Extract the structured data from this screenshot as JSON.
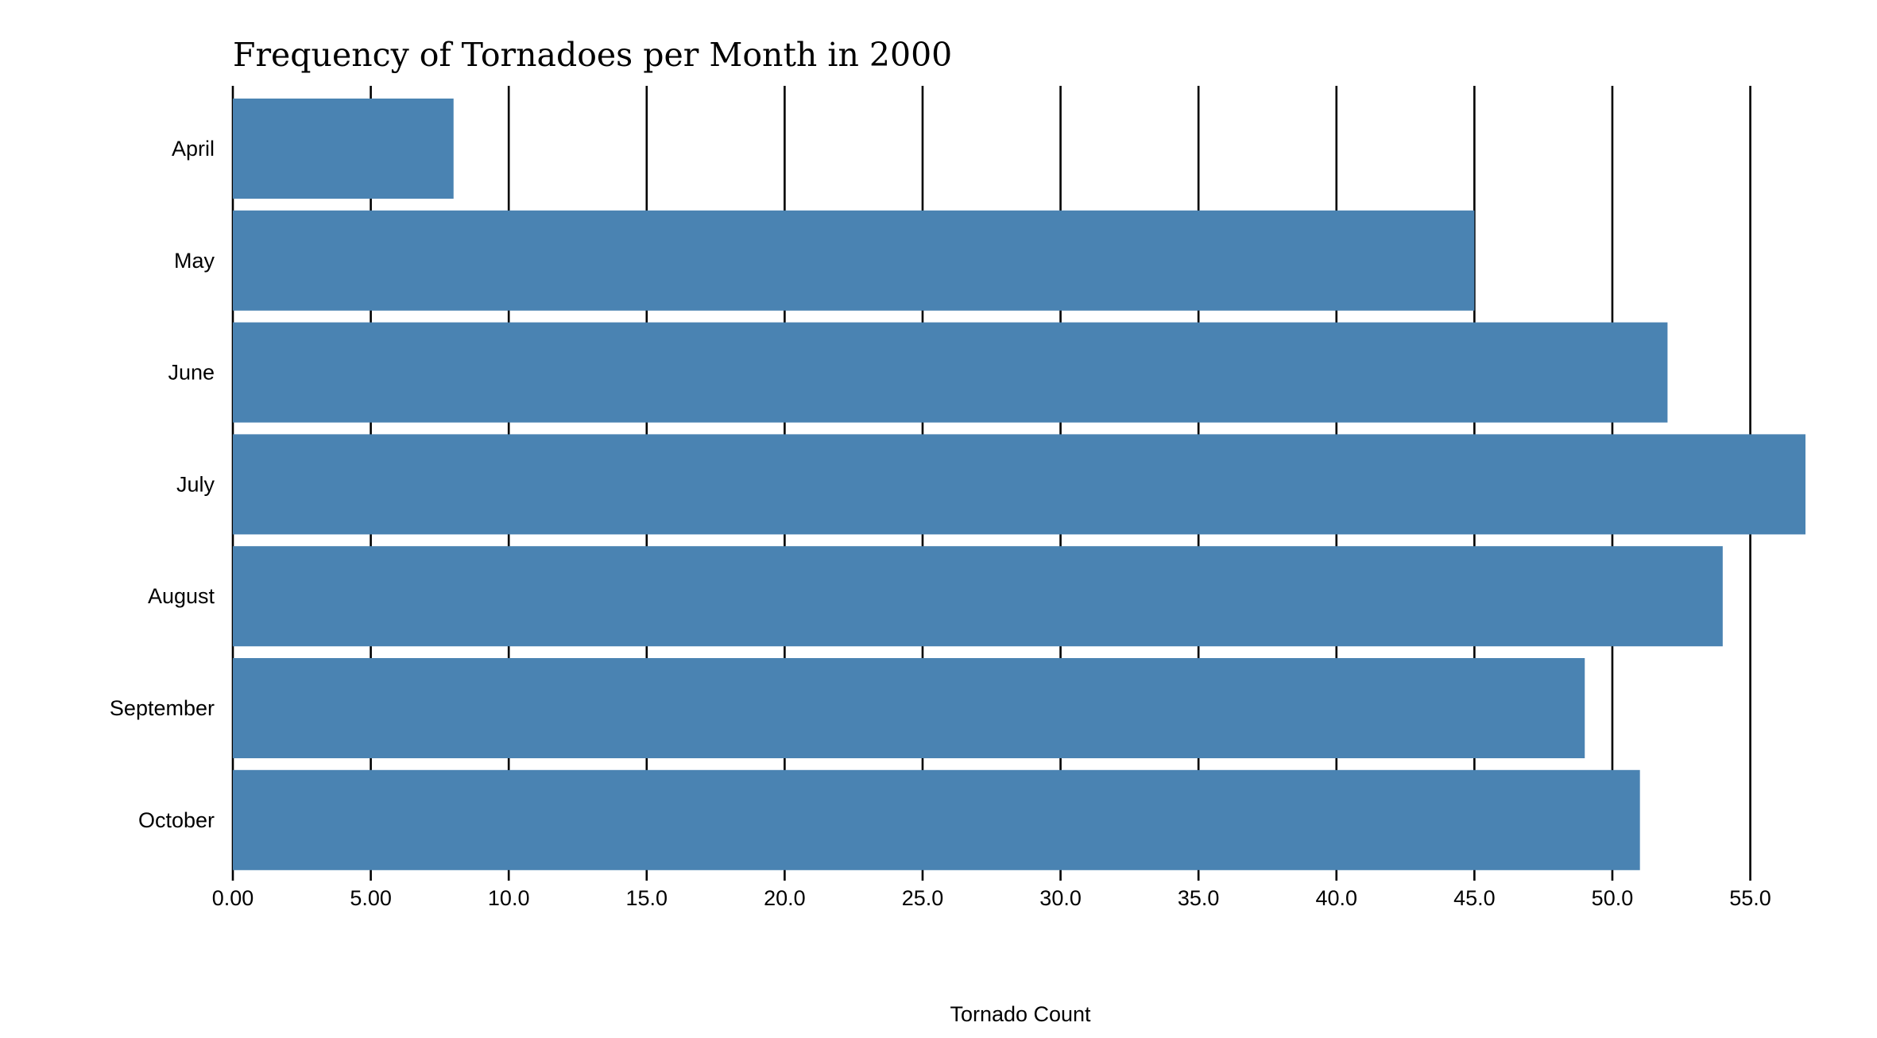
{
  "chart_data": {
    "type": "bar",
    "orientation": "horizontal",
    "title": "Frequency of Tornadoes per Month in 2000",
    "xlabel": "Tornado Count",
    "ylabel": "",
    "categories": [
      "April",
      "May",
      "June",
      "July",
      "August",
      "September",
      "October"
    ],
    "values": [
      8,
      45,
      52,
      57,
      54,
      49,
      51
    ],
    "xlim": [
      0,
      57
    ],
    "xticks": [
      0,
      5,
      10,
      15,
      20,
      25,
      30,
      35,
      40,
      45,
      50,
      55
    ],
    "xtick_labels": [
      "0.00",
      "5.00",
      "10.0",
      "15.0",
      "20.0",
      "25.0",
      "30.0",
      "35.0",
      "40.0",
      "45.0",
      "50.0",
      "55.0"
    ],
    "grid": "vertical",
    "legend": "none",
    "bar_color": "#4a83b2",
    "grid_color": "#000000"
  }
}
